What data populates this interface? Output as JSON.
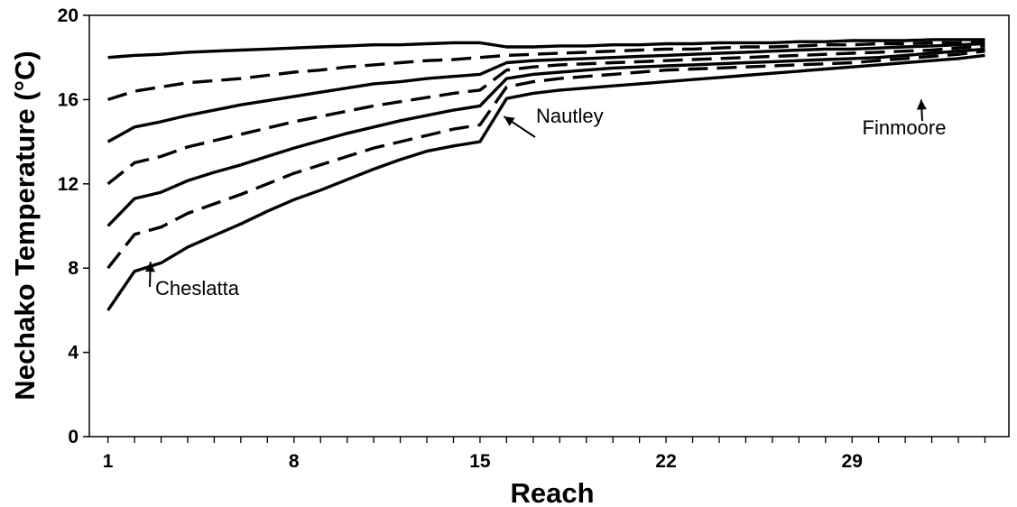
{
  "chart_data": {
    "type": "line",
    "xlabel": "Reach",
    "ylabel": "Nechako Temperature (°C)",
    "xlim": [
      0.3,
      34.9
    ],
    "ylim": [
      0,
      20
    ],
    "x_tick_labels": [
      "1",
      "8",
      "15",
      "22",
      "29"
    ],
    "x_tick_values": [
      1,
      8,
      15,
      22,
      29
    ],
    "y_tick_labels": [
      "0",
      "4",
      "8",
      "12",
      "16",
      "20"
    ],
    "y_tick_values": [
      0,
      4,
      8,
      12,
      16,
      20
    ],
    "x": [
      1,
      2,
      3,
      4,
      5,
      6,
      7,
      8,
      9,
      10,
      11,
      12,
      13,
      14,
      15,
      16,
      17,
      18,
      19,
      20,
      21,
      22,
      23,
      24,
      25,
      26,
      27,
      28,
      29,
      30,
      31,
      32,
      33,
      34
    ],
    "series": [
      {
        "style": "solid",
        "values": [
          18.0,
          18.1,
          18.15,
          18.25,
          18.3,
          18.35,
          18.4,
          18.45,
          18.5,
          18.55,
          18.6,
          18.6,
          18.65,
          18.7,
          18.7,
          18.5,
          18.5,
          18.55,
          18.55,
          18.6,
          18.6,
          18.65,
          18.65,
          18.7,
          18.7,
          18.7,
          18.75,
          18.75,
          18.8,
          18.8,
          18.8,
          18.85,
          18.85,
          18.85
        ]
      },
      {
        "style": "dashed",
        "values": [
          16.0,
          16.4,
          16.6,
          16.8,
          16.9,
          17.0,
          17.15,
          17.3,
          17.4,
          17.55,
          17.65,
          17.75,
          17.85,
          17.9,
          18.0,
          18.1,
          18.15,
          18.2,
          18.25,
          18.3,
          18.35,
          18.4,
          18.4,
          18.45,
          18.5,
          18.5,
          18.55,
          18.6,
          18.6,
          18.65,
          18.65,
          18.7,
          18.7,
          18.75
        ]
      },
      {
        "style": "solid",
        "values": [
          14.0,
          14.7,
          14.95,
          15.25,
          15.5,
          15.75,
          15.95,
          16.15,
          16.35,
          16.55,
          16.75,
          16.85,
          17.0,
          17.1,
          17.2,
          17.75,
          17.85,
          17.9,
          17.95,
          18.0,
          18.05,
          18.1,
          18.15,
          18.2,
          18.25,
          18.3,
          18.35,
          18.4,
          18.4,
          18.45,
          18.5,
          18.55,
          18.6,
          18.65
        ]
      },
      {
        "style": "dashed",
        "values": [
          12.0,
          13.0,
          13.3,
          13.75,
          14.05,
          14.35,
          14.65,
          14.95,
          15.2,
          15.45,
          15.7,
          15.9,
          16.1,
          16.3,
          16.45,
          17.4,
          17.55,
          17.65,
          17.7,
          17.75,
          17.8,
          17.85,
          17.9,
          17.95,
          18.0,
          18.05,
          18.1,
          18.15,
          18.2,
          18.25,
          18.3,
          18.35,
          18.45,
          18.55
        ]
      },
      {
        "style": "solid",
        "values": [
          10.0,
          11.3,
          11.6,
          12.15,
          12.55,
          12.9,
          13.3,
          13.7,
          14.05,
          14.4,
          14.7,
          15.0,
          15.25,
          15.5,
          15.7,
          17.0,
          17.2,
          17.3,
          17.4,
          17.5,
          17.55,
          17.6,
          17.65,
          17.7,
          17.75,
          17.8,
          17.85,
          17.9,
          17.95,
          18.0,
          18.1,
          18.2,
          18.3,
          18.4
        ]
      },
      {
        "style": "dashed",
        "values": [
          8.0,
          9.6,
          9.95,
          10.6,
          11.05,
          11.5,
          12.0,
          12.5,
          12.9,
          13.3,
          13.7,
          14.0,
          14.3,
          14.6,
          14.8,
          16.6,
          16.85,
          17.0,
          17.1,
          17.2,
          17.3,
          17.4,
          17.45,
          17.5,
          17.55,
          17.6,
          17.65,
          17.7,
          17.75,
          17.85,
          17.95,
          18.05,
          18.15,
          18.3
        ]
      },
      {
        "style": "solid",
        "values": [
          6.0,
          7.85,
          8.25,
          9.0,
          9.55,
          10.1,
          10.7,
          11.25,
          11.7,
          12.2,
          12.7,
          13.15,
          13.55,
          13.8,
          14.0,
          16.05,
          16.3,
          16.45,
          16.55,
          16.65,
          16.75,
          16.85,
          16.95,
          17.05,
          17.15,
          17.25,
          17.35,
          17.45,
          17.55,
          17.65,
          17.75,
          17.85,
          17.95,
          18.1
        ]
      }
    ],
    "annotations": [
      {
        "text": "Cheslatta",
        "points_to": [
          2.6,
          8.3
        ]
      },
      {
        "text": "Nautley",
        "points_to": [
          15.9,
          15.2
        ]
      },
      {
        "text": "Finmoore",
        "points_to": [
          31.6,
          16.0
        ]
      }
    ],
    "grid": false,
    "legend": "none"
  }
}
